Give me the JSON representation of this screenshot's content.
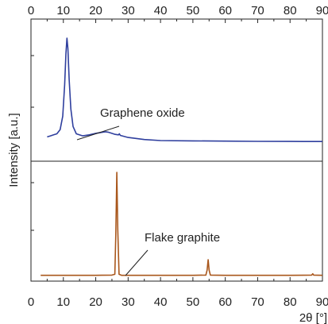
{
  "chart_data": {
    "type": "line",
    "xlabel": "2θ [°]",
    "ylabel": "Intensity [a.u.]",
    "xlim": [
      0,
      90
    ],
    "x_ticks": [
      0,
      10,
      20,
      30,
      40,
      50,
      60,
      70,
      80,
      90
    ],
    "x_tick_labels": [
      "0",
      "10",
      "20",
      "30",
      "40",
      "50",
      "60",
      "70",
      "80",
      "90"
    ],
    "top_axis_ticks_duplicated": true,
    "panels": 2,
    "grid": false,
    "series": [
      {
        "name": "Graphene oxide",
        "panel": "top",
        "color": "#2f3f9e",
        "annotation": "Graphene oxide",
        "peaks_deg": [
          11.2,
          23.0
        ],
        "points": [
          [
            5,
            0.05
          ],
          [
            6,
            0.06
          ],
          [
            7,
            0.07
          ],
          [
            8,
            0.08
          ],
          [
            9,
            0.12
          ],
          [
            9.8,
            0.25
          ],
          [
            10.4,
            0.55
          ],
          [
            10.8,
            0.85
          ],
          [
            11.1,
            1.0
          ],
          [
            11.4,
            0.9
          ],
          [
            11.8,
            0.6
          ],
          [
            12.3,
            0.32
          ],
          [
            13,
            0.15
          ],
          [
            14,
            0.08
          ],
          [
            16,
            0.06
          ],
          [
            18,
            0.07
          ],
          [
            20,
            0.085
          ],
          [
            22,
            0.095
          ],
          [
            23,
            0.1
          ],
          [
            24,
            0.095
          ],
          [
            26,
            0.075
          ],
          [
            27,
            0.07
          ],
          [
            27.3,
            0.08
          ],
          [
            27.6,
            0.065
          ],
          [
            30,
            0.045
          ],
          [
            35,
            0.025
          ],
          [
            40,
            0.015
          ],
          [
            50,
            0.012
          ],
          [
            60,
            0.01
          ],
          [
            70,
            0.008
          ],
          [
            80,
            0.007
          ],
          [
            90,
            0.006
          ]
        ]
      },
      {
        "name": "Flake graphite",
        "panel": "bottom",
        "color": "#a9571c",
        "annotation": "Flake graphite",
        "peaks_deg": [
          26.6,
          54.7,
          87.0
        ],
        "points": [
          [
            3,
            0.01
          ],
          [
            10,
            0.01
          ],
          [
            20,
            0.01
          ],
          [
            25,
            0.012
          ],
          [
            25.9,
            0.02
          ],
          [
            26.2,
            0.4
          ],
          [
            26.5,
            1.0
          ],
          [
            26.8,
            0.45
          ],
          [
            27.2,
            0.02
          ],
          [
            28,
            0.01
          ],
          [
            40,
            0.01
          ],
          [
            50,
            0.01
          ],
          [
            54,
            0.012
          ],
          [
            54.4,
            0.06
          ],
          [
            54.7,
            0.16
          ],
          [
            55,
            0.06
          ],
          [
            55.4,
            0.012
          ],
          [
            60,
            0.01
          ],
          [
            70,
            0.01
          ],
          [
            80,
            0.01
          ],
          [
            86.7,
            0.012
          ],
          [
            87,
            0.025
          ],
          [
            87.3,
            0.012
          ],
          [
            90,
            0.01
          ]
        ]
      }
    ]
  }
}
